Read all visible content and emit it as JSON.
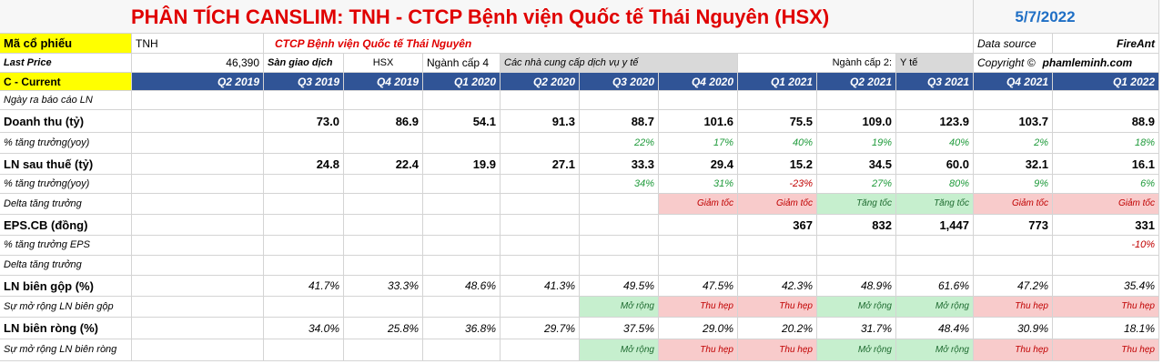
{
  "header": {
    "title": "PHÂN TÍCH CANSLIM: TNH - CTCP Bệnh viện Quốc tế Thái Nguyên (HSX)",
    "date": "5/7/2022"
  },
  "info": {
    "ticker_label": "Mã cổ phiếu",
    "ticker": "TNH",
    "company": "CTCP Bệnh viện Quốc tế Thái Nguyên",
    "source_label": "Data source",
    "source": "FireAnt",
    "price_label": "Last Price",
    "price": "46,390",
    "exchange_label": "Sàn giao dịch",
    "exchange": "HSX",
    "industry4_label": "Ngành cấp 4",
    "industry4": "Các nhà cung cấp dịch vụ y tế",
    "industry2_label": "Ngành cấp 2:",
    "industry2": "Y tế",
    "copyright_label": "Copyright ©",
    "copyright": "phamleminh.com"
  },
  "table": {
    "corner": "C - Current",
    "columns": [
      "Q2 2019",
      "Q3 2019",
      "Q4 2019",
      "Q1 2020",
      "Q2 2020",
      "Q3 2020",
      "Q4 2020",
      "Q1 2021",
      "Q2 2021",
      "Q3 2021",
      "Q4 2021",
      "Q1 2022"
    ],
    "rows": [
      {
        "label": "Ngày ra báo cáo LN",
        "style": "sub",
        "cells": [
          null,
          null,
          null,
          null,
          null,
          null,
          null,
          null,
          null,
          null,
          null,
          null
        ]
      },
      {
        "label": "Doanh thu (tỷ)",
        "style": "bold",
        "cells": [
          null,
          "73.0",
          "86.9",
          "54.1",
          "91.3",
          "88.7",
          "101.6",
          "75.5",
          "109.0",
          "123.9",
          "103.7",
          "88.9"
        ]
      },
      {
        "label": "% tăng trưởng(yoy)",
        "style": "growth",
        "cells": [
          null,
          null,
          null,
          null,
          null,
          "22%",
          "17%",
          "40%",
          "19%",
          "40%",
          "2%",
          "18%"
        ]
      },
      {
        "label": "LN sau thuế (tỷ)",
        "style": "bold",
        "cells": [
          null,
          "24.8",
          "22.4",
          "19.9",
          "27.1",
          "33.3",
          "29.4",
          "15.2",
          "34.5",
          "60.0",
          "32.1",
          "16.1"
        ]
      },
      {
        "label": "% tăng trưởng(yoy)",
        "style": "growth",
        "cells": [
          null,
          null,
          null,
          null,
          null,
          "34%",
          "31%",
          "-23%",
          "27%",
          "80%",
          "9%",
          "6%"
        ]
      },
      {
        "label": "Delta tăng trưởng",
        "style": "signal",
        "cells": [
          null,
          null,
          null,
          null,
          null,
          null,
          "Giảm tốc",
          "Giảm tốc",
          "Tăng tốc",
          "Tăng tốc",
          "Giảm tốc",
          "Giảm tốc"
        ],
        "fills": [
          null,
          null,
          null,
          null,
          null,
          null,
          "#f8cbcb",
          "#f8cbcb",
          "#c6efce",
          "#c6efce",
          "#f8cbcb",
          "#f8cbcb"
        ]
      },
      {
        "label": "EPS.CB (đồng)",
        "style": "bold",
        "cells": [
          null,
          null,
          null,
          null,
          null,
          null,
          null,
          "367",
          "832",
          "1,447",
          "773",
          "331"
        ]
      },
      {
        "label": "% tăng trưởng EPS",
        "style": "growth",
        "cells": [
          null,
          null,
          null,
          null,
          null,
          null,
          null,
          null,
          null,
          null,
          null,
          "-10%"
        ]
      },
      {
        "label": "Delta tăng trưởng",
        "style": "sub",
        "cells": [
          null,
          null,
          null,
          null,
          null,
          null,
          null,
          null,
          null,
          null,
          null,
          null
        ]
      },
      {
        "label": "LN biên gộp (%)",
        "style": "italic",
        "cells": [
          null,
          "41.7%",
          "33.3%",
          "48.6%",
          "41.3%",
          "49.5%",
          "47.5%",
          "42.3%",
          "48.9%",
          "61.6%",
          "47.2%",
          "35.4%"
        ]
      },
      {
        "label": "Sự mở rộng LN biên gộp",
        "style": "signal",
        "cells": [
          null,
          null,
          null,
          null,
          null,
          "Mở rộng",
          "Thu hẹp",
          "Thu hẹp",
          "Mở rộng",
          "Mở rộng",
          "Thu hẹp",
          "Thu hẹp"
        ],
        "fills": [
          null,
          null,
          null,
          null,
          null,
          "#c6efce",
          "#f8cbcb",
          "#f8cbcb",
          "#c6efce",
          "#c6efce",
          "#f8cbcb",
          "#f8cbcb"
        ]
      },
      {
        "label": "LN biên ròng (%)",
        "style": "italic",
        "cells": [
          null,
          "34.0%",
          "25.8%",
          "36.8%",
          "29.7%",
          "37.5%",
          "29.0%",
          "20.2%",
          "31.7%",
          "48.4%",
          "30.9%",
          "18.1%"
        ]
      },
      {
        "label": "Sự mở rộng LN biên ròng",
        "style": "signal",
        "cells": [
          null,
          null,
          null,
          null,
          null,
          "Mở rộng",
          "Thu hẹp",
          "Thu hẹp",
          "Mở rộng",
          "Mở rộng",
          "Thu hẹp",
          "Thu hẹp"
        ],
        "fills": [
          null,
          null,
          null,
          null,
          null,
          "#c6efce",
          "#f8cbcb",
          "#f8cbcb",
          "#c6efce",
          "#c6efce",
          "#f8cbcb",
          "#f8cbcb"
        ]
      }
    ]
  }
}
